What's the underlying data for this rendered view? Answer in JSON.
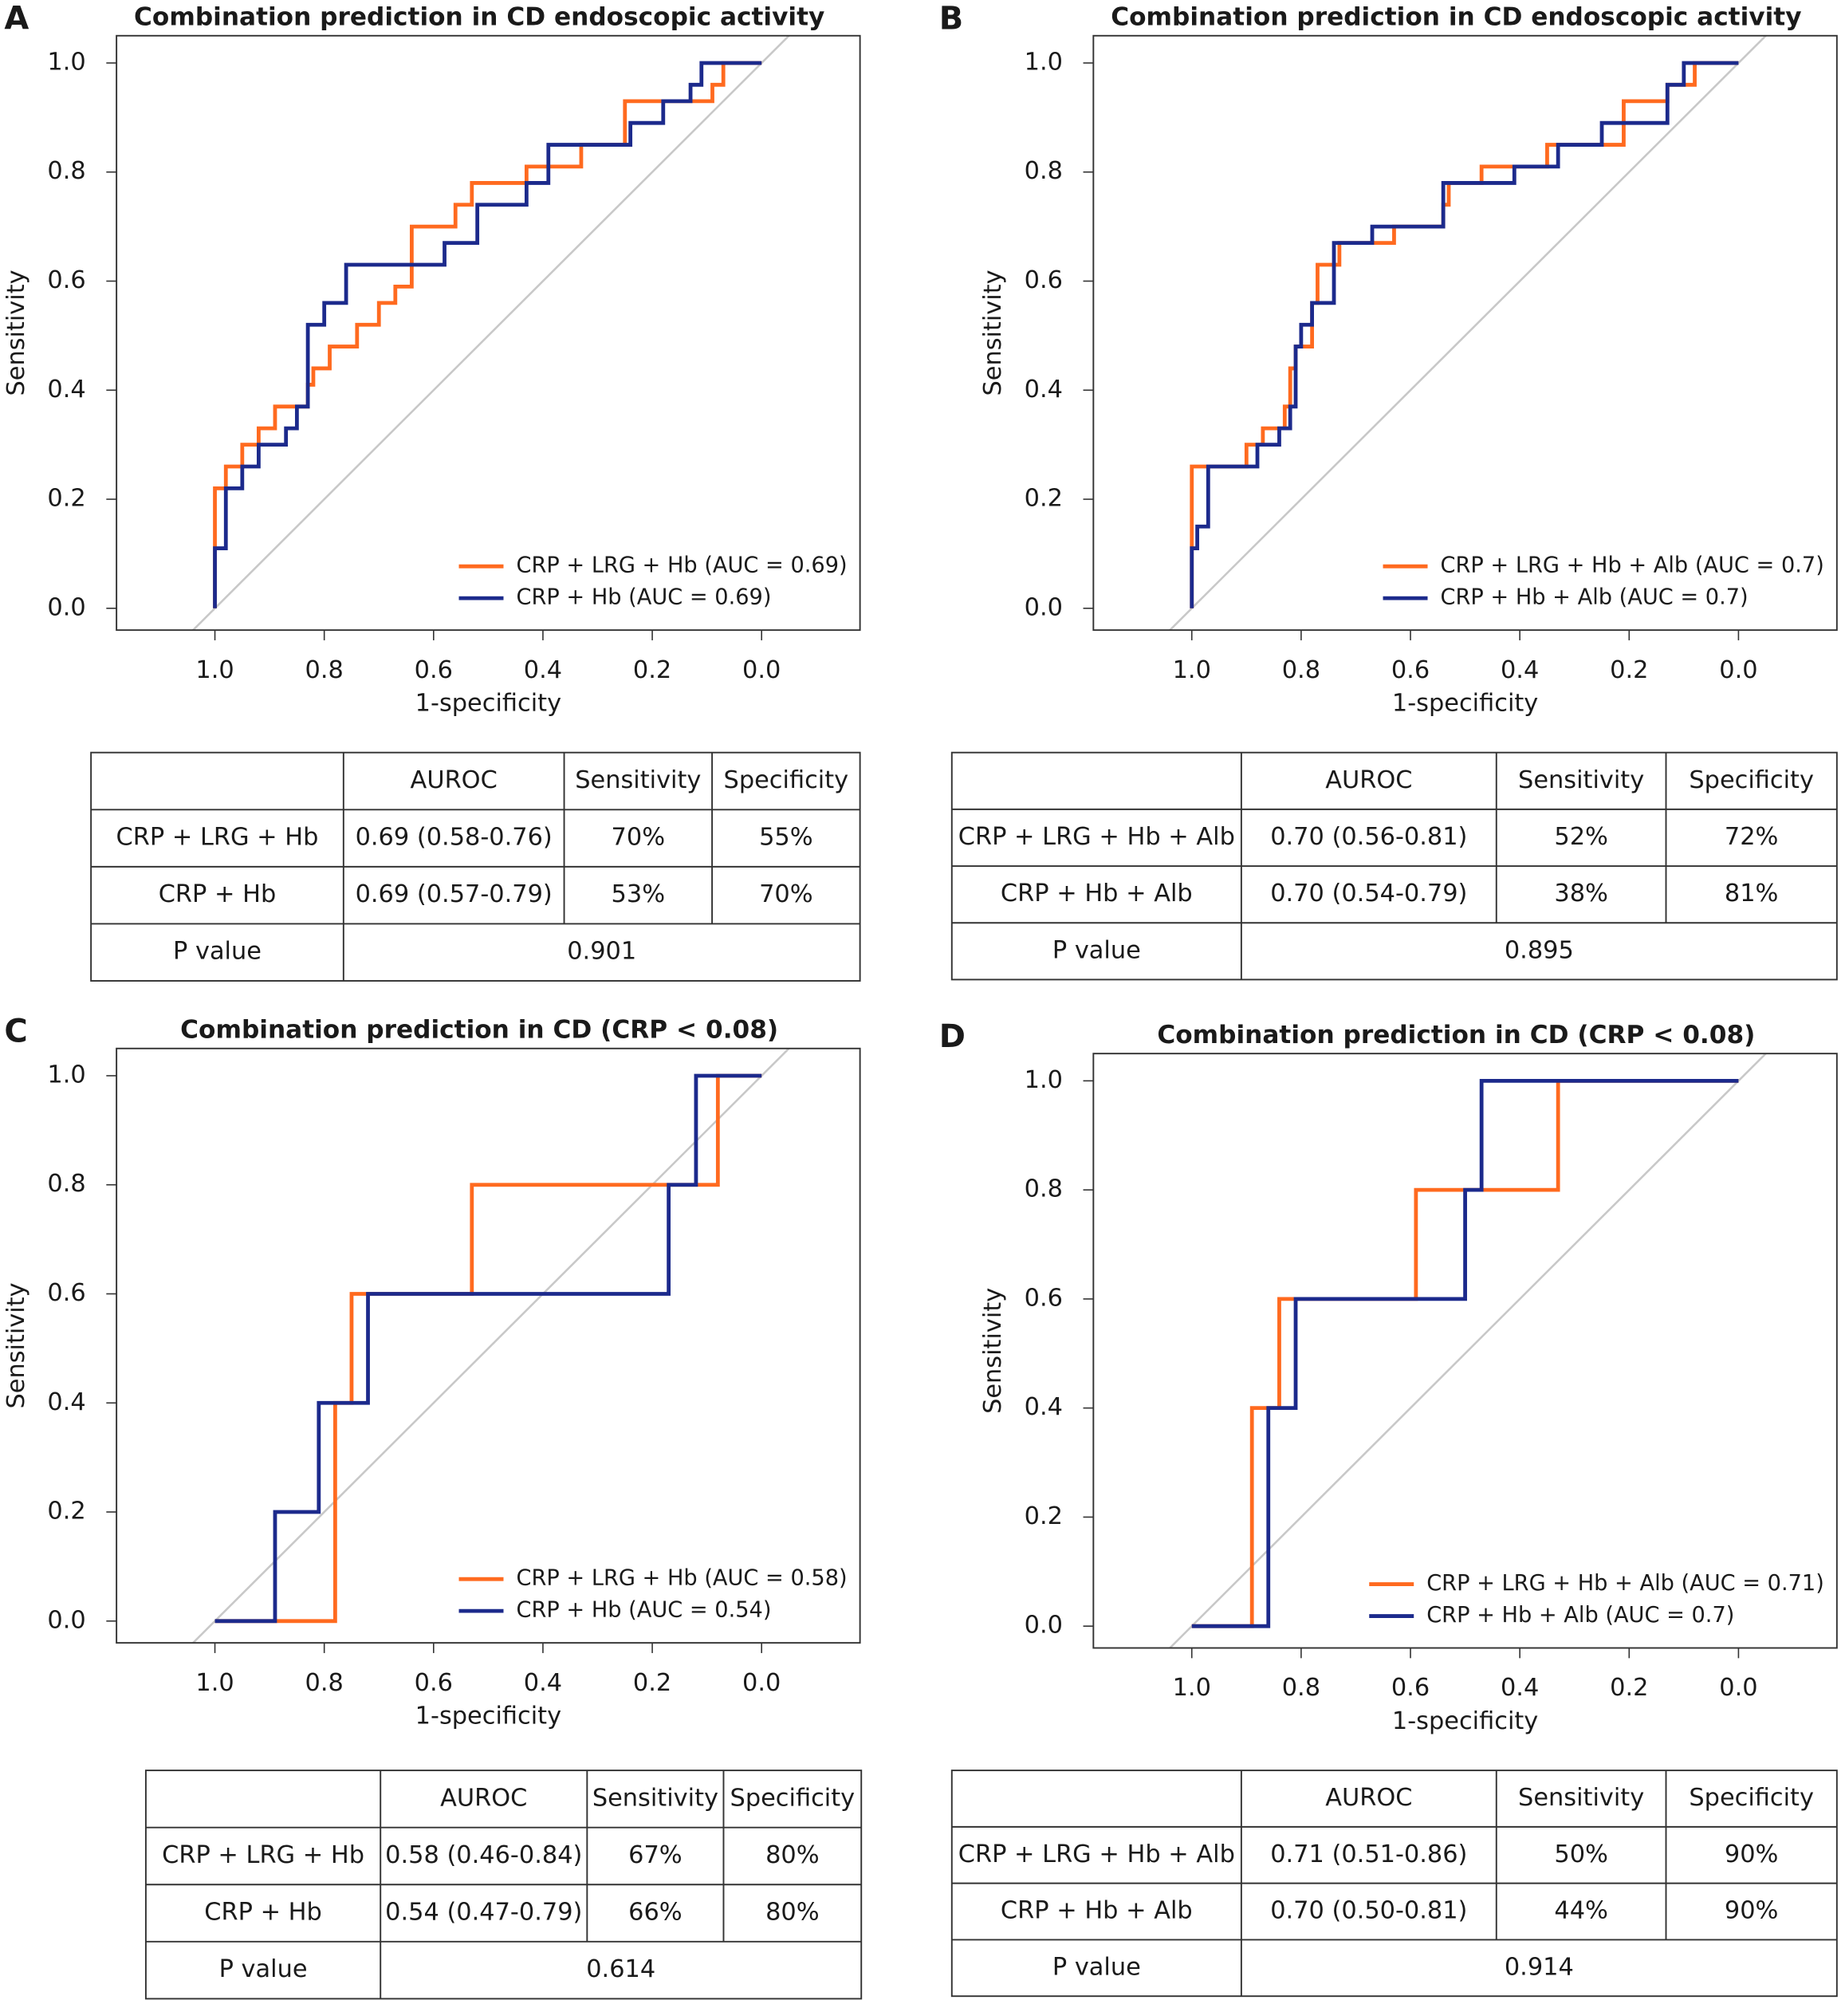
{
  "chart_data": [
    {
      "type": "line",
      "panel_label": "A",
      "title": "Combination prediction in CD endoscopic activity",
      "x_label": "1-specificity",
      "y_label": "Sensitivity",
      "xlim": [
        1.18,
        -0.18
      ],
      "ylim": [
        -0.04,
        1.05
      ],
      "xticks": [
        {
          "value": 1,
          "label": "1.0"
        },
        {
          "value": 0.8,
          "label": "0.8"
        },
        {
          "value": 0.6,
          "label": "0.6"
        },
        {
          "value": 0.4,
          "label": "0.4"
        },
        {
          "value": 0.2,
          "label": "0.2"
        },
        {
          "value": 0,
          "label": "0.0"
        }
      ],
      "yticks": [
        {
          "value": 0,
          "label": "0.0"
        },
        {
          "value": 0.2,
          "label": "0.2"
        },
        {
          "value": 0.4,
          "label": "0.4"
        },
        {
          "value": 0.6,
          "label": "0.6"
        },
        {
          "value": 0.8,
          "label": "0.8"
        },
        {
          "value": 1,
          "label": "1.0"
        }
      ],
      "diagonal": true,
      "legend_position": "bottom right",
      "series": [
        {
          "name": "CRP + LRG + Hb (AUC = 0.69)",
          "color": "#ff6a1f",
          "x": [
            1,
            1,
            0.98,
            0.98,
            0.95,
            0.95,
            0.92,
            0.92,
            0.89,
            0.89,
            0.83,
            0.83,
            0.82,
            0.82,
            0.79,
            0.79,
            0.74,
            0.74,
            0.7,
            0.7,
            0.67,
            0.67,
            0.64,
            0.64,
            0.56,
            0.56,
            0.53,
            0.53,
            0.43,
            0.43,
            0.33,
            0.33,
            0.25,
            0.25,
            0.09,
            0.09,
            0.07,
            0.07,
            0
          ],
          "values": [
            0,
            0.22,
            0.22,
            0.26,
            0.26,
            0.3,
            0.3,
            0.33,
            0.33,
            0.37,
            0.37,
            0.41,
            0.41,
            0.44,
            0.44,
            0.48,
            0.48,
            0.52,
            0.52,
            0.56,
            0.56,
            0.59,
            0.59,
            0.7,
            0.7,
            0.74,
            0.74,
            0.78,
            0.78,
            0.81,
            0.81,
            0.85,
            0.85,
            0.93,
            0.93,
            0.96,
            0.96,
            1,
            1
          ]
        },
        {
          "name": "CRP + Hb (AUC = 0.69)",
          "color": "#1c2a8c",
          "x": [
            1,
            1,
            0.98,
            0.98,
            0.95,
            0.95,
            0.92,
            0.92,
            0.87,
            0.87,
            0.85,
            0.85,
            0.83,
            0.83,
            0.8,
            0.8,
            0.76,
            0.76,
            0.58,
            0.58,
            0.52,
            0.52,
            0.43,
            0.43,
            0.39,
            0.39,
            0.24,
            0.24,
            0.18,
            0.18,
            0.13,
            0.13,
            0.11,
            0.11,
            0
          ],
          "values": [
            0,
            0.11,
            0.11,
            0.22,
            0.22,
            0.26,
            0.26,
            0.3,
            0.3,
            0.33,
            0.33,
            0.37,
            0.37,
            0.52,
            0.52,
            0.56,
            0.56,
            0.63,
            0.63,
            0.67,
            0.67,
            0.74,
            0.74,
            0.78,
            0.78,
            0.85,
            0.85,
            0.89,
            0.89,
            0.93,
            0.93,
            0.96,
            0.96,
            1,
            1
          ]
        }
      ]
    },
    {
      "type": "line",
      "panel_label": "B",
      "title": "Combination prediction in CD endoscopic activity",
      "x_label": "1-specificity",
      "y_label": "Sensitivity",
      "xlim": [
        1.18,
        -0.18
      ],
      "ylim": [
        -0.04,
        1.05
      ],
      "xticks": [
        {
          "value": 1,
          "label": "1.0"
        },
        {
          "value": 0.8,
          "label": "0.8"
        },
        {
          "value": 0.6,
          "label": "0.6"
        },
        {
          "value": 0.4,
          "label": "0.4"
        },
        {
          "value": 0.2,
          "label": "0.2"
        },
        {
          "value": 0,
          "label": "0.0"
        }
      ],
      "yticks": [
        {
          "value": 0,
          "label": "0.0"
        },
        {
          "value": 0.2,
          "label": "0.2"
        },
        {
          "value": 0.4,
          "label": "0.4"
        },
        {
          "value": 0.6,
          "label": "0.6"
        },
        {
          "value": 0.8,
          "label": "0.8"
        },
        {
          "value": 1,
          "label": "1.0"
        }
      ],
      "diagonal": true,
      "legend_position": "bottom right",
      "series": [
        {
          "name": "CRP + LRG + Hb + Alb (AUC = 0.7)",
          "color": "#ff6a1f",
          "x": [
            1,
            1,
            0.9,
            0.9,
            0.87,
            0.87,
            0.83,
            0.83,
            0.82,
            0.82,
            0.81,
            0.81,
            0.78,
            0.78,
            0.77,
            0.77,
            0.73,
            0.73,
            0.63,
            0.63,
            0.54,
            0.54,
            0.53,
            0.53,
            0.47,
            0.47,
            0.35,
            0.35,
            0.21,
            0.21,
            0.13,
            0.13,
            0.08,
            0.08,
            0
          ],
          "values": [
            0,
            0.26,
            0.26,
            0.3,
            0.3,
            0.33,
            0.33,
            0.37,
            0.37,
            0.44,
            0.44,
            0.48,
            0.48,
            0.56,
            0.56,
            0.63,
            0.63,
            0.67,
            0.67,
            0.7,
            0.7,
            0.74,
            0.74,
            0.78,
            0.78,
            0.81,
            0.81,
            0.85,
            0.85,
            0.93,
            0.93,
            0.96,
            0.96,
            1,
            1
          ]
        },
        {
          "name": "CRP + Hb + Alb (AUC = 0.7)",
          "color": "#1c2a8c",
          "x": [
            1,
            1,
            0.99,
            0.99,
            0.97,
            0.97,
            0.88,
            0.88,
            0.84,
            0.84,
            0.82,
            0.82,
            0.81,
            0.81,
            0.8,
            0.8,
            0.78,
            0.78,
            0.74,
            0.74,
            0.67,
            0.67,
            0.54,
            0.54,
            0.41,
            0.41,
            0.33,
            0.33,
            0.25,
            0.25,
            0.13,
            0.13,
            0.1,
            0.1,
            0
          ],
          "values": [
            0,
            0.11,
            0.11,
            0.15,
            0.15,
            0.26,
            0.26,
            0.3,
            0.3,
            0.33,
            0.33,
            0.37,
            0.37,
            0.48,
            0.48,
            0.52,
            0.52,
            0.56,
            0.56,
            0.67,
            0.67,
            0.7,
            0.7,
            0.78,
            0.78,
            0.81,
            0.81,
            0.85,
            0.85,
            0.89,
            0.89,
            0.96,
            0.96,
            1,
            1
          ]
        }
      ]
    },
    {
      "type": "line",
      "panel_label": "C",
      "title": "Combination prediction in CD (CRP < 0.08)",
      "x_label": "1-specificity",
      "y_label": "Sensitivity",
      "xlim": [
        1.18,
        -0.18
      ],
      "ylim": [
        -0.04,
        1.05
      ],
      "xticks": [
        {
          "value": 1,
          "label": "1.0"
        },
        {
          "value": 0.8,
          "label": "0.8"
        },
        {
          "value": 0.6,
          "label": "0.6"
        },
        {
          "value": 0.4,
          "label": "0.4"
        },
        {
          "value": 0.2,
          "label": "0.2"
        },
        {
          "value": 0,
          "label": "0.0"
        }
      ],
      "yticks": [
        {
          "value": 0,
          "label": "0.0"
        },
        {
          "value": 0.2,
          "label": "0.2"
        },
        {
          "value": 0.4,
          "label": "0.4"
        },
        {
          "value": 0.6,
          "label": "0.6"
        },
        {
          "value": 0.8,
          "label": "0.8"
        },
        {
          "value": 1,
          "label": "1.0"
        }
      ],
      "diagonal": true,
      "legend_position": "bottom right",
      "series": [
        {
          "name": "CRP + LRG + Hb (AUC = 0.58)",
          "color": "#ff6a1f",
          "x": [
            1,
            0.78,
            0.78,
            0.75,
            0.75,
            0.53,
            0.53,
            0.08,
            0.08,
            0
          ],
          "values": [
            0,
            0,
            0.4,
            0.4,
            0.6,
            0.6,
            0.8,
            0.8,
            1,
            1
          ]
        },
        {
          "name": "CRP + Hb (AUC = 0.54)",
          "color": "#1c2a8c",
          "x": [
            1,
            0.89,
            0.89,
            0.81,
            0.81,
            0.72,
            0.72,
            0.17,
            0.17,
            0.12,
            0.12,
            0
          ],
          "values": [
            0,
            0,
            0.2,
            0.2,
            0.4,
            0.4,
            0.6,
            0.6,
            0.8,
            0.8,
            1,
            1
          ]
        }
      ]
    },
    {
      "type": "line",
      "panel_label": "D",
      "title": "Combination prediction in CD (CRP < 0.08)",
      "x_label": "1-specificity",
      "y_label": "Sensitivity",
      "xlim": [
        1.18,
        -0.18
      ],
      "ylim": [
        -0.04,
        1.05
      ],
      "xticks": [
        {
          "value": 1,
          "label": "1.0"
        },
        {
          "value": 0.8,
          "label": "0.8"
        },
        {
          "value": 0.6,
          "label": "0.6"
        },
        {
          "value": 0.4,
          "label": "0.4"
        },
        {
          "value": 0.2,
          "label": "0.2"
        },
        {
          "value": 0,
          "label": "0.0"
        }
      ],
      "yticks": [
        {
          "value": 0,
          "label": "0.0"
        },
        {
          "value": 0.2,
          "label": "0.2"
        },
        {
          "value": 0.4,
          "label": "0.4"
        },
        {
          "value": 0.6,
          "label": "0.6"
        },
        {
          "value": 0.8,
          "label": "0.8"
        },
        {
          "value": 1,
          "label": "1.0"
        }
      ],
      "diagonal": true,
      "legend_position": "bottom right",
      "series": [
        {
          "name": "CRP + LRG + Hb + Alb (AUC = 0.71)",
          "color": "#ff6a1f",
          "x": [
            1,
            0.89,
            0.89,
            0.84,
            0.84,
            0.59,
            0.59,
            0.33,
            0.33,
            0
          ],
          "values": [
            0,
            0,
            0.4,
            0.4,
            0.6,
            0.6,
            0.8,
            0.8,
            1,
            1
          ]
        },
        {
          "name": "CRP + Hb + Alb (AUC = 0.7)",
          "color": "#1c2a8c",
          "x": [
            1,
            0.86,
            0.86,
            0.81,
            0.81,
            0.5,
            0.5,
            0.47,
            0.47,
            0
          ],
          "values": [
            0,
            0,
            0.4,
            0.4,
            0.6,
            0.6,
            0.8,
            0.8,
            1,
            1
          ]
        }
      ]
    }
  ],
  "tables": [
    {
      "header": [
        "AUROC",
        "Sensitivity",
        "Specificity"
      ],
      "rows": [
        [
          "CRP + LRG + Hb",
          "0.69 (0.58-0.76)",
          "70%",
          "55%"
        ],
        [
          "CRP + Hb",
          "0.69 (0.57-0.79)",
          "53%",
          "70%"
        ]
      ],
      "p_label": "P value",
      "p_value": "0.901"
    },
    {
      "header": [
        "AUROC",
        "Sensitivity",
        "Specificity"
      ],
      "rows": [
        [
          "CRP + LRG + Hb + Alb",
          "0.70 (0.56-0.81)",
          "52%",
          "72%"
        ],
        [
          "CRP + Hb + Alb",
          "0.70 (0.54-0.79)",
          "38%",
          "81%"
        ]
      ],
      "p_label": "P value",
      "p_value": "0.895"
    },
    {
      "header": [
        "AUROC",
        "Sensitivity",
        "Specificity"
      ],
      "rows": [
        [
          "CRP + LRG + Hb",
          "0.58 (0.46-0.84)",
          "67%",
          "80%"
        ],
        [
          "CRP + Hb",
          "0.54 (0.47-0.79)",
          "66%",
          "80%"
        ]
      ],
      "p_label": "P value",
      "p_value": "0.614"
    },
    {
      "header": [
        "AUROC",
        "Sensitivity",
        "Specificity"
      ],
      "rows": [
        [
          "CRP + LRG + Hb + Alb",
          "0.71 (0.51-0.86)",
          "50%",
          "90%"
        ],
        [
          "CRP + Hb + Alb",
          "0.70 (0.50-0.81)",
          "44%",
          "90%"
        ]
      ],
      "p_label": "P value",
      "p_value": "0.914"
    }
  ]
}
